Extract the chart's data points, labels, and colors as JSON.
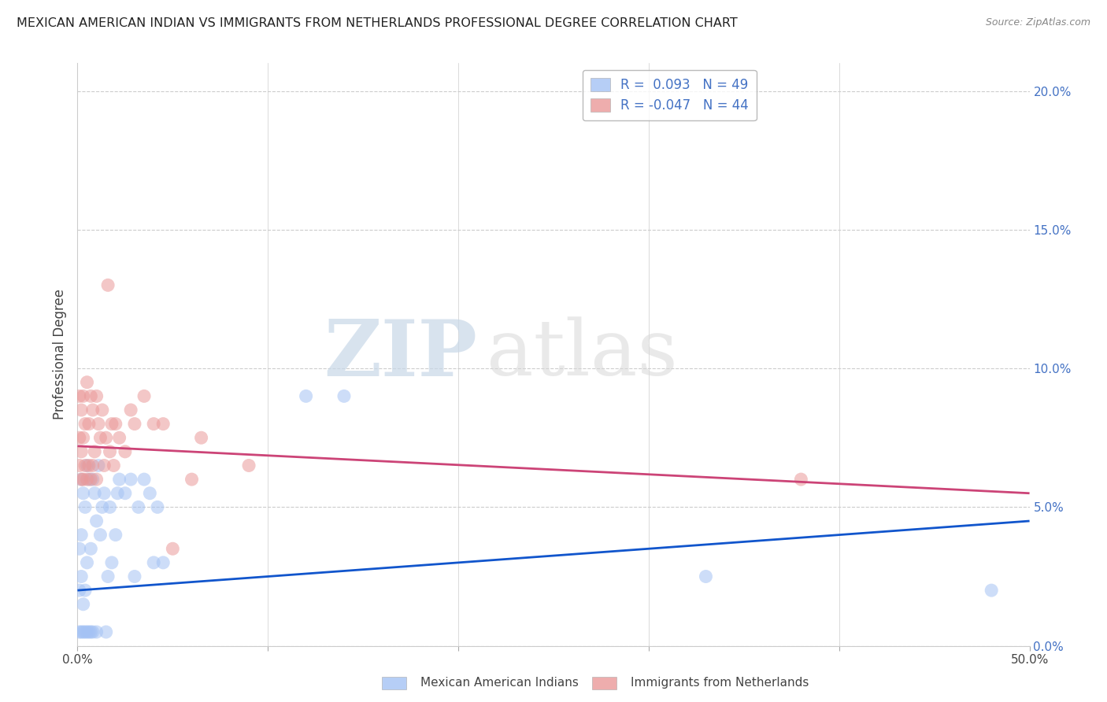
{
  "title": "MEXICAN AMERICAN INDIAN VS IMMIGRANTS FROM NETHERLANDS PROFESSIONAL DEGREE CORRELATION CHART",
  "source": "Source: ZipAtlas.com",
  "ylabel": "Professional Degree",
  "xlim": [
    0.0,
    0.5
  ],
  "ylim": [
    0.0,
    0.21
  ],
  "xticks": [
    0.0,
    0.1,
    0.2,
    0.3,
    0.4,
    0.5
  ],
  "xticklabels_show": [
    "0.0%",
    "50.0%"
  ],
  "xticklabels_show_vals": [
    0.0,
    0.5
  ],
  "yticks_right": [
    0.0,
    0.05,
    0.1,
    0.15,
    0.2
  ],
  "yticklabels_right": [
    "0.0%",
    "5.0%",
    "10.0%",
    "15.0%",
    "20.0%"
  ],
  "blue_color": "#a4c2f4",
  "pink_color": "#ea9999",
  "blue_line_color": "#1155cc",
  "pink_line_color": "#cc4477",
  "legend_blue_label": "Mexican American Indians",
  "legend_pink_label": "Immigrants from Netherlands",
  "R_blue": 0.093,
  "N_blue": 49,
  "R_pink": -0.047,
  "N_pink": 44,
  "watermark_zip": "ZIP",
  "watermark_atlas": "atlas",
  "blue_scatter_x": [
    0.001,
    0.001,
    0.001,
    0.002,
    0.002,
    0.002,
    0.002,
    0.003,
    0.003,
    0.003,
    0.004,
    0.004,
    0.004,
    0.005,
    0.005,
    0.005,
    0.006,
    0.006,
    0.007,
    0.007,
    0.008,
    0.008,
    0.009,
    0.01,
    0.01,
    0.011,
    0.012,
    0.013,
    0.014,
    0.015,
    0.016,
    0.017,
    0.018,
    0.02,
    0.021,
    0.022,
    0.025,
    0.028,
    0.03,
    0.032,
    0.035,
    0.038,
    0.04,
    0.042,
    0.045,
    0.12,
    0.14,
    0.33,
    0.48
  ],
  "blue_scatter_y": [
    0.005,
    0.02,
    0.035,
    0.005,
    0.025,
    0.04,
    0.06,
    0.005,
    0.015,
    0.055,
    0.005,
    0.02,
    0.05,
    0.005,
    0.03,
    0.065,
    0.005,
    0.06,
    0.005,
    0.035,
    0.005,
    0.06,
    0.055,
    0.005,
    0.045,
    0.065,
    0.04,
    0.05,
    0.055,
    0.005,
    0.025,
    0.05,
    0.03,
    0.04,
    0.055,
    0.06,
    0.055,
    0.06,
    0.025,
    0.05,
    0.06,
    0.055,
    0.03,
    0.05,
    0.03,
    0.09,
    0.09,
    0.025,
    0.02
  ],
  "pink_scatter_x": [
    0.001,
    0.001,
    0.001,
    0.002,
    0.002,
    0.002,
    0.003,
    0.003,
    0.003,
    0.004,
    0.004,
    0.005,
    0.005,
    0.006,
    0.006,
    0.007,
    0.007,
    0.008,
    0.008,
    0.009,
    0.01,
    0.01,
    0.011,
    0.012,
    0.013,
    0.014,
    0.015,
    0.016,
    0.017,
    0.018,
    0.019,
    0.02,
    0.022,
    0.025,
    0.028,
    0.03,
    0.035,
    0.04,
    0.045,
    0.05,
    0.06,
    0.065,
    0.09,
    0.38
  ],
  "pink_scatter_y": [
    0.065,
    0.075,
    0.09,
    0.06,
    0.07,
    0.085,
    0.06,
    0.075,
    0.09,
    0.065,
    0.08,
    0.06,
    0.095,
    0.065,
    0.08,
    0.06,
    0.09,
    0.065,
    0.085,
    0.07,
    0.06,
    0.09,
    0.08,
    0.075,
    0.085,
    0.065,
    0.075,
    0.13,
    0.07,
    0.08,
    0.065,
    0.08,
    0.075,
    0.07,
    0.085,
    0.08,
    0.09,
    0.08,
    0.08,
    0.035,
    0.06,
    0.075,
    0.065,
    0.06
  ],
  "blue_trend_x": [
    0.0,
    0.5
  ],
  "blue_trend_y": [
    0.02,
    0.045
  ],
  "pink_trend_x": [
    0.0,
    0.5
  ],
  "pink_trend_y": [
    0.072,
    0.055
  ]
}
